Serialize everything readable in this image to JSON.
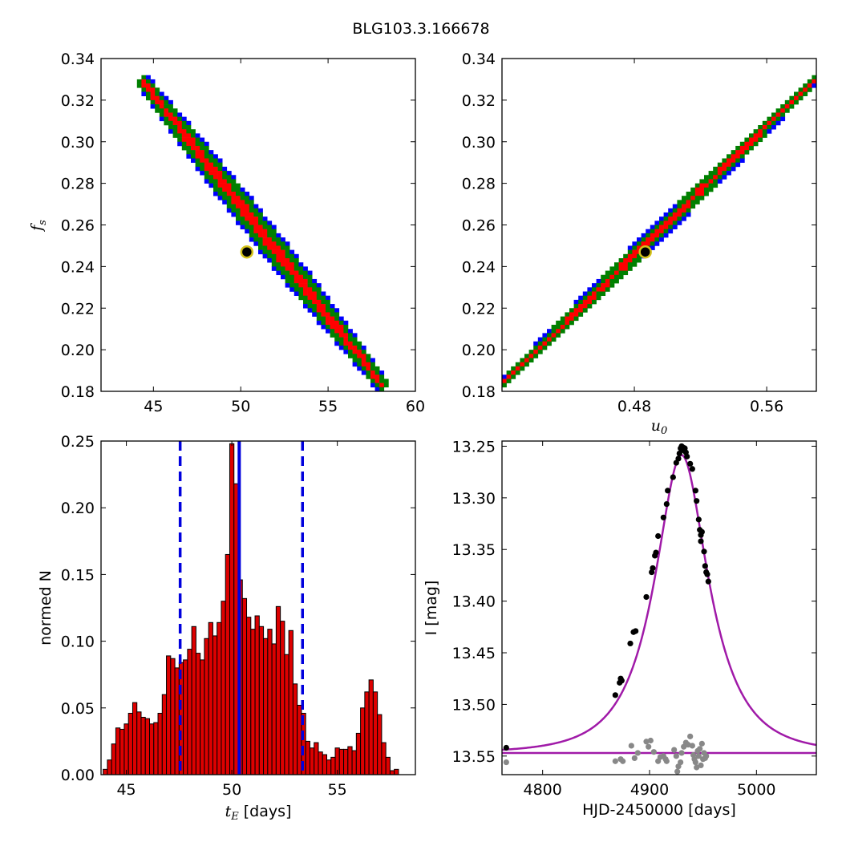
{
  "figure": {
    "title": "BLG103.3.166678"
  },
  "colors": {
    "sigma3": "#0000ff",
    "sigma2": "#008000",
    "sigma1": "#ff0000",
    "best": "#000000",
    "marker_ring": "#d4c21a",
    "hist_bar": "#dd0000",
    "hist_line": "#0000dd",
    "model": "#a01aa8",
    "data_points": "#000000",
    "residuals": "#888888"
  },
  "chart_data": [
    {
      "id": "tE_fs",
      "type": "heatmap",
      "title": "",
      "xlabel": "",
      "ylabel_symbol": "f",
      "ylabel_sub": "s",
      "xlim": [
        42,
        60
      ],
      "ylim": [
        0.18,
        0.34
      ],
      "xticks": [
        45,
        50,
        55,
        60
      ],
      "yticks": [
        "0.18",
        "0.20",
        "0.22",
        "0.24",
        "0.26",
        "0.28",
        "0.30",
        "0.32",
        "0.34"
      ],
      "band": {
        "start": [
          44.3,
          0.33
        ],
        "end": [
          58.2,
          0.182
        ],
        "levels": [
          "1 sigma",
          "2 sigma",
          "3 sigma"
        ]
      },
      "best_fit": {
        "x": 50.35,
        "y": 0.247
      }
    },
    {
      "id": "u0_fs",
      "type": "heatmap",
      "title": "",
      "xlabel_symbol": "u",
      "xlabel_sub": "0",
      "ylabel": "",
      "xlim": [
        0.4,
        0.59
      ],
      "ylim": [
        0.18,
        0.34
      ],
      "xticks": [
        "0.48",
        "0.56"
      ],
      "yticks": [
        "0.18",
        "0.20",
        "0.22",
        "0.24",
        "0.26",
        "0.28",
        "0.30",
        "0.32",
        "0.34"
      ],
      "band": {
        "start": [
          0.401,
          0.184
        ],
        "end": [
          0.589,
          0.33
        ],
        "levels": [
          "1 sigma",
          "2 sigma",
          "3 sigma"
        ]
      },
      "best_fit": {
        "x": 0.4866,
        "y": 0.247
      }
    },
    {
      "id": "tE_hist",
      "type": "bar",
      "title": "",
      "xlabel_symbol": "t",
      "xlabel_sub": "E",
      "xlabel_suffix": "[days]",
      "ylabel": "normed N",
      "xlim": [
        43.8,
        58.7
      ],
      "ylim": [
        0,
        0.25
      ],
      "xticks": [
        45,
        50,
        55
      ],
      "yticks": [
        "0.00",
        "0.05",
        "0.10",
        "0.15",
        "0.20",
        "0.25"
      ],
      "bin_start": 43.9,
      "bin_width": 0.2,
      "values": [
        0.004,
        0.011,
        0.023,
        0.035,
        0.034,
        0.038,
        0.046,
        0.054,
        0.047,
        0.043,
        0.042,
        0.038,
        0.039,
        0.046,
        0.06,
        0.089,
        0.087,
        0.08,
        0.084,
        0.086,
        0.094,
        0.111,
        0.091,
        0.086,
        0.102,
        0.114,
        0.104,
        0.114,
        0.13,
        0.165,
        0.248,
        0.218,
        0.146,
        0.132,
        0.118,
        0.109,
        0.119,
        0.111,
        0.102,
        0.109,
        0.098,
        0.126,
        0.115,
        0.09,
        0.108,
        0.068,
        0.052,
        0.046,
        0.025,
        0.02,
        0.024,
        0.017,
        0.015,
        0.011,
        0.013,
        0.02,
        0.019,
        0.019,
        0.021,
        0.018,
        0.031,
        0.05,
        0.062,
        0.071,
        0.062,
        0.045,
        0.024,
        0.013,
        0.003,
        0.004
      ],
      "median": 50.35,
      "lower": 47.55,
      "upper": 53.35
    },
    {
      "id": "lightcurve",
      "type": "scatter",
      "title": "",
      "xlabel": "HJD-2450000 [days]",
      "ylabel": "I [mag]",
      "xlim": [
        4762,
        5056
      ],
      "ylim": [
        13.568,
        13.245
      ],
      "y_inverted": true,
      "xticks": [
        4800,
        4900,
        5000
      ],
      "yticks": [
        "13.25",
        "13.30",
        "13.35",
        "13.40",
        "13.45",
        "13.50",
        "13.55"
      ],
      "model": {
        "t0": 4930,
        "u0": 0.487,
        "tE": 50.35,
        "fs": 0.247,
        "baseline": 13.547
      },
      "points": [
        [
          4766,
          13.542
        ],
        [
          4868,
          13.491
        ],
        [
          4872,
          13.479
        ],
        [
          4873,
          13.475
        ],
        [
          4874,
          13.477
        ],
        [
          4882,
          13.441
        ],
        [
          4885,
          13.43
        ],
        [
          4887,
          13.429
        ],
        [
          4897,
          13.396
        ],
        [
          4902,
          13.372
        ],
        [
          4903,
          13.368
        ],
        [
          4905,
          13.356
        ],
        [
          4906,
          13.353
        ],
        [
          4908,
          13.337
        ],
        [
          4913,
          13.319
        ],
        [
          4916,
          13.306
        ],
        [
          4917,
          13.293
        ],
        [
          4922,
          13.28
        ],
        [
          4925,
          13.266
        ],
        [
          4927,
          13.262
        ],
        [
          4928,
          13.257
        ],
        [
          4929,
          13.252
        ],
        [
          4930,
          13.25
        ],
        [
          4931,
          13.251
        ],
        [
          4932,
          13.254
        ],
        [
          4933,
          13.252
        ],
        [
          4934,
          13.256
        ],
        [
          4935,
          13.26
        ],
        [
          4938,
          13.267
        ],
        [
          4940,
          13.272
        ],
        [
          4943,
          13.293
        ],
        [
          4944,
          13.303
        ],
        [
          4946,
          13.321
        ],
        [
          4947,
          13.331
        ],
        [
          4948,
          13.336
        ],
        [
          4948,
          13.342
        ],
        [
          4949,
          13.333
        ],
        [
          4951,
          13.352
        ],
        [
          4952,
          13.366
        ],
        [
          4953,
          13.372
        ],
        [
          4954,
          13.374
        ],
        [
          4955,
          13.381
        ]
      ],
      "residual_points": [
        [
          4766,
          13.556
        ],
        [
          4868,
          13.555
        ],
        [
          4873,
          13.553
        ],
        [
          4875,
          13.555
        ],
        [
          4883,
          13.54
        ],
        [
          4886,
          13.552
        ],
        [
          4889,
          13.547
        ],
        [
          4897,
          13.536
        ],
        [
          4899,
          13.541
        ],
        [
          4901,
          13.535
        ],
        [
          4904,
          13.546
        ],
        [
          4908,
          13.555
        ],
        [
          4910,
          13.551
        ],
        [
          4913,
          13.55
        ],
        [
          4915,
          13.553
        ],
        [
          4916,
          13.555
        ],
        [
          4923,
          13.544
        ],
        [
          4925,
          13.55
        ],
        [
          4926,
          13.565
        ],
        [
          4927,
          13.56
        ],
        [
          4929,
          13.556
        ],
        [
          4930,
          13.547
        ],
        [
          4932,
          13.541
        ],
        [
          4934,
          13.537
        ],
        [
          4936,
          13.539
        ],
        [
          4938,
          13.531
        ],
        [
          4940,
          13.54
        ],
        [
          4941,
          13.549
        ],
        [
          4942,
          13.553
        ],
        [
          4943,
          13.556
        ],
        [
          4944,
          13.561
        ],
        [
          4945,
          13.545
        ],
        [
          4946,
          13.55
        ],
        [
          4947,
          13.543
        ],
        [
          4948,
          13.559
        ],
        [
          4949,
          13.538
        ],
        [
          4950,
          13.553
        ],
        [
          4951,
          13.547
        ],
        [
          4952,
          13.552
        ],
        [
          4953,
          13.55
        ]
      ]
    }
  ]
}
